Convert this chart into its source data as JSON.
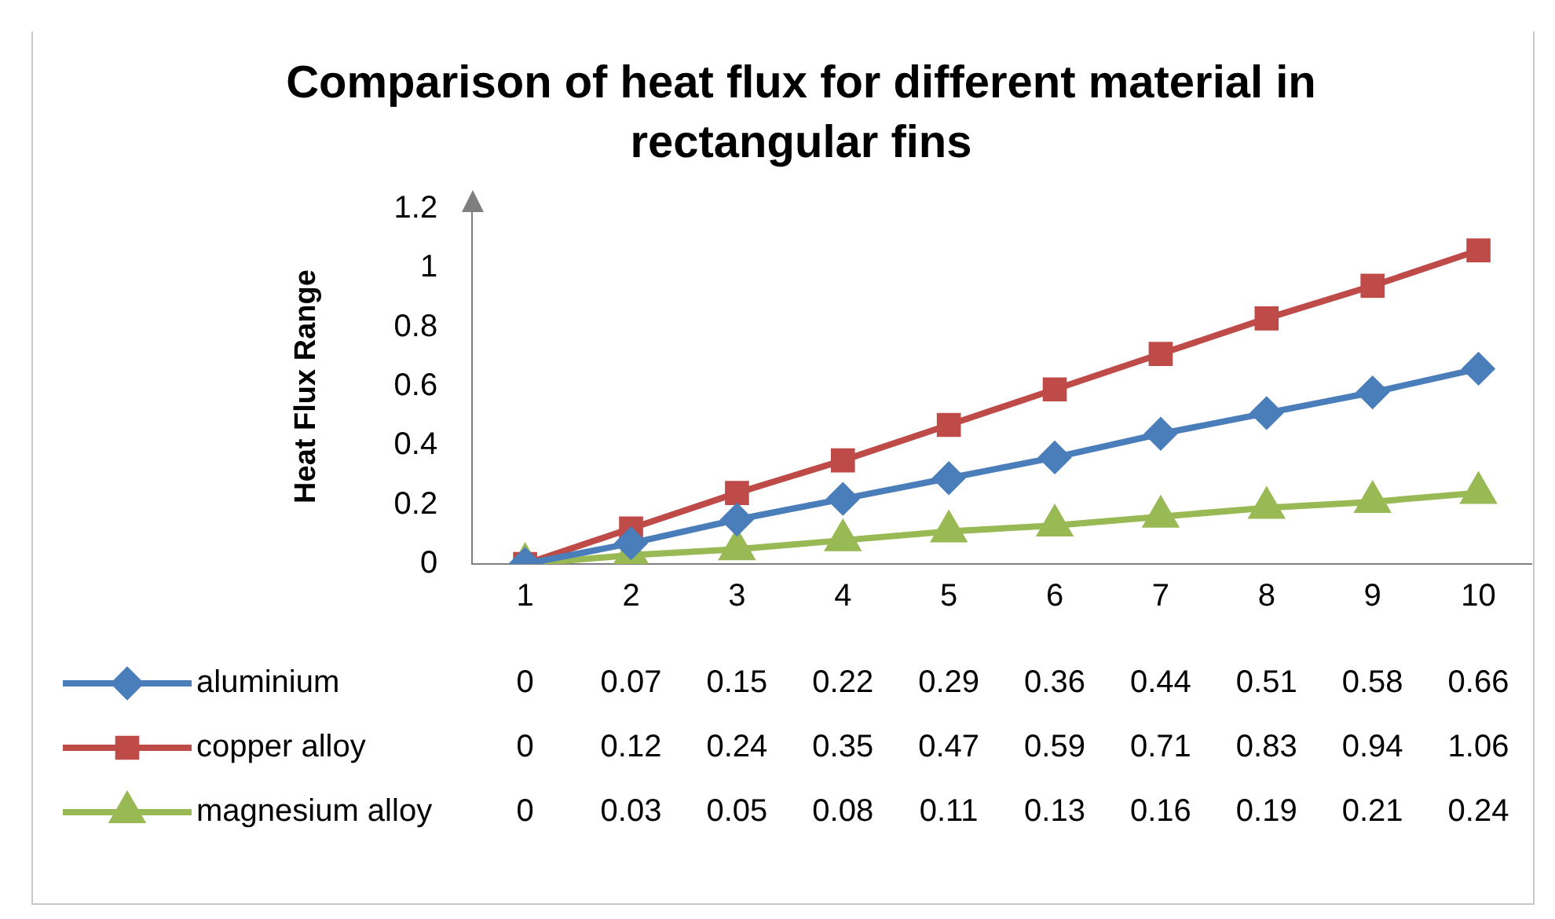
{
  "chart_data": {
    "type": "line",
    "title": "Comparison of heat flux for different material in rectangular fins",
    "ylabel": "Heat Flux Range",
    "categories": [
      "1",
      "2",
      "3",
      "4",
      "5",
      "6",
      "7",
      "8",
      "9",
      "10"
    ],
    "series": [
      {
        "name": "aluminium",
        "color": "#4a7ebb",
        "marker": "diamond",
        "values": [
          0,
          0.07,
          0.15,
          0.22,
          0.29,
          0.36,
          0.44,
          0.51,
          0.58,
          0.66
        ]
      },
      {
        "name": "copper alloy",
        "color": "#be4b48",
        "marker": "square",
        "values": [
          0,
          0.12,
          0.24,
          0.35,
          0.47,
          0.59,
          0.71,
          0.83,
          0.94,
          1.06
        ]
      },
      {
        "name": "magnesium alloy",
        "color": "#98b954",
        "marker": "triangle",
        "values": [
          0,
          0.03,
          0.05,
          0.08,
          0.11,
          0.13,
          0.16,
          0.19,
          0.21,
          0.24
        ]
      }
    ],
    "ylim": [
      0,
      1.2
    ],
    "yticks": [
      0,
      0.2,
      0.4,
      0.6,
      0.8,
      1,
      1.2
    ],
    "grid": false,
    "legend": "bottom",
    "data_labels": true,
    "line_style": "solid"
  }
}
